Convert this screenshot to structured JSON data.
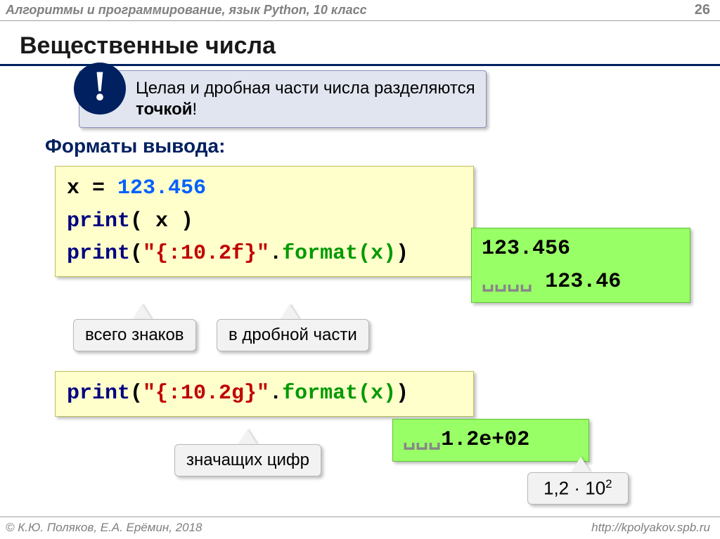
{
  "header": {
    "course": "Алгоритмы и программирование, язык Python, 10 класс",
    "page": "26"
  },
  "title": "Вещественные числа",
  "callout": {
    "bang": "!",
    "line1": "Целая и дробная части числа разделяются ",
    "bold": "точкой",
    "tail": "!"
  },
  "subhead": "Форматы вывода",
  "code1": {
    "l1_lhs": "x = ",
    "l1_val": "123.456",
    "l2_print": "print",
    "l2_paren": "( x )",
    "l3_print": "print",
    "l3_p1": "(",
    "l3_str": "\"{:10.2f}\"",
    "l3_dot": ".",
    "l3_fmt": "format(x)",
    "l3_p2": ")"
  },
  "out1": {
    "l1": "123.456",
    "l2_sp": "␣␣␣␣",
    "l2_v": " 123.46"
  },
  "labels": {
    "total": "всего знаков",
    "frac": "в дробной части",
    "sig": "значащих цифр",
    "sci_prefix": "1,2 · 10",
    "sci_exp": "2"
  },
  "code2": {
    "print": "print",
    "p1": "(",
    "str": "\"{:10.2g}\"",
    "dot": ".",
    "fmt": "format(x)",
    "p2": ")"
  },
  "out2": {
    "sp": "␣␣␣",
    "v": "1.2e+02"
  },
  "footer": {
    "copyright": "© К.Ю. Поляков, Е.А. Ерёмин, 2018",
    "url": "http://kpolyakov.spb.ru"
  },
  "colors": {
    "accent": "#002060",
    "code_bg": "#ffffcc",
    "out_bg": "#99ff66",
    "label_bg": "#f2f2f2",
    "callout_bg": "#e1e5f0"
  }
}
